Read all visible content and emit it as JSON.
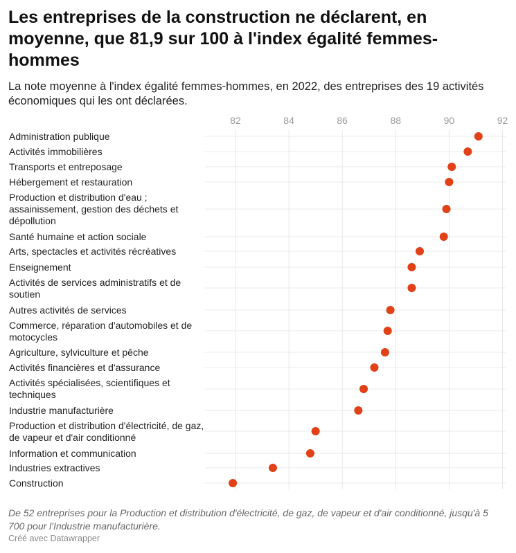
{
  "title": "Les entreprises de la construction ne déclarent, en moyenne, que 81,9 sur 100 à l'index égalité femmes-hommes",
  "subtitle": "La note moyenne à l'index égalité femmes-hommes, en 2022, des entreprises des 19 activités économiques qui les ont déclarées.",
  "note": "De 52 entreprises pour la Production et distribution d'électricité, de gaz, de vapeur et d'air conditionné, jusqu'à 5 700 pour l'Industrie manufacturière.",
  "credit": "Créé avec Datawrapper",
  "chart_data": {
    "type": "scatter",
    "subtype": "dot-plot",
    "title": "Les entreprises de la construction ne déclarent, en moyenne, que 81,9 sur 100 à l'index égalité femmes-hommes",
    "xlim": [
      81.7,
      92.1
    ],
    "xticks": [
      "82",
      "84",
      "86",
      "88",
      "90",
      "92"
    ],
    "grid": true,
    "dot_color": "#e04117",
    "categories": [
      "Administration publique",
      "Activités immobilières",
      "Transports et entreposage",
      "Hébergement et restauration",
      "Production et distribution d'eau ; assainissement, gestion des déchets et dépollution",
      "Santé humaine et action sociale",
      "Arts, spectacles et activités récréatives",
      "Enseignement",
      "Activités de services administratifs et de soutien",
      "Autres activités de services",
      "Commerce, réparation d'automobiles et de motocycles",
      "Agriculture, sylviculture et pêche",
      "Activités financières et d'assurance",
      "Activités spécialisées, scientifiques et techniques",
      "Industrie manufacturière",
      "Production et distribution d'électricité, de gaz, de vapeur et d'air conditionné",
      "Information et communication",
      "Industries extractives",
      "Construction"
    ],
    "values": [
      91.1,
      90.7,
      90.1,
      90.0,
      89.9,
      89.8,
      88.9,
      88.6,
      88.6,
      87.8,
      87.7,
      87.6,
      87.2,
      86.8,
      86.6,
      85.0,
      84.8,
      83.4,
      81.9
    ]
  }
}
